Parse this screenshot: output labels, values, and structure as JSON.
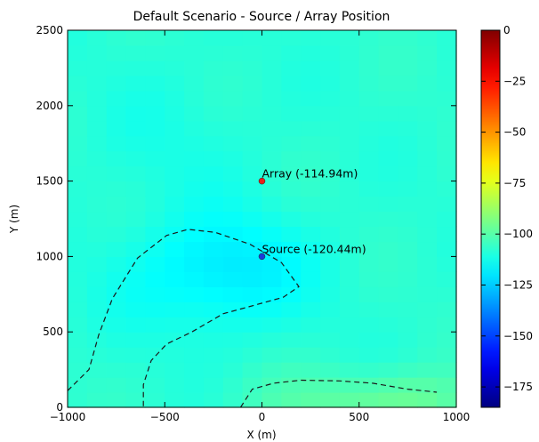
{
  "chart_data": {
    "type": "heatmap",
    "title": "Default Scenario - Source / Array Position",
    "xlabel": "X (m)",
    "ylabel": "Y (m)",
    "xlim": [
      -1000,
      1000
    ],
    "ylim": [
      0,
      2500
    ],
    "x_ticks": [
      -1000,
      -500,
      0,
      500,
      1000
    ],
    "x_tick_labels": [
      "−1000",
      "−500",
      "0",
      "500",
      "1000"
    ],
    "y_ticks": [
      0,
      500,
      1000,
      1500,
      2000,
      2500
    ],
    "y_tick_labels": [
      "0",
      "500",
      "1000",
      "1500",
      "2000",
      "2500"
    ],
    "colormap": "jet",
    "colorbar": {
      "vmin": -185,
      "vmax": 0,
      "ticks": [
        0,
        -25,
        -50,
        -75,
        -100,
        -125,
        -150,
        -175
      ],
      "tick_labels": [
        "0",
        "−25",
        "−50",
        "−75",
        "−100",
        "−125",
        "−150",
        "−175"
      ]
    },
    "grid": false,
    "points": [
      {
        "label": "Array (-114.94m)",
        "x": 0,
        "y": 1500,
        "value": -114.94,
        "color": "#e8201c"
      },
      {
        "label": "Source (-120.44m)",
        "x": 0,
        "y": 1000,
        "value": -120.44,
        "color": "#1b3bd6"
      }
    ],
    "contours": [
      {
        "style": "dashed",
        "path": [
          [
            -1000,
            110
          ],
          [
            -890,
            250
          ],
          [
            -840,
            480
          ],
          [
            -770,
            720
          ],
          [
            -640,
            990
          ],
          [
            -490,
            1140
          ],
          [
            -380,
            1180
          ],
          [
            -240,
            1160
          ],
          [
            -60,
            1080
          ],
          [
            100,
            960
          ],
          [
            190,
            800
          ],
          [
            110,
            730
          ],
          [
            -30,
            680
          ],
          [
            -200,
            620
          ],
          [
            -360,
            500
          ],
          [
            -490,
            420
          ],
          [
            -570,
            310
          ],
          [
            -610,
            150
          ],
          [
            -610,
            0
          ]
        ]
      },
      {
        "style": "dashed",
        "path": [
          [
            -110,
            0
          ],
          [
            -50,
            120
          ],
          [
            60,
            160
          ],
          [
            200,
            180
          ],
          [
            400,
            175
          ],
          [
            570,
            160
          ],
          [
            750,
            120
          ],
          [
            900,
            100
          ]
        ]
      }
    ]
  }
}
